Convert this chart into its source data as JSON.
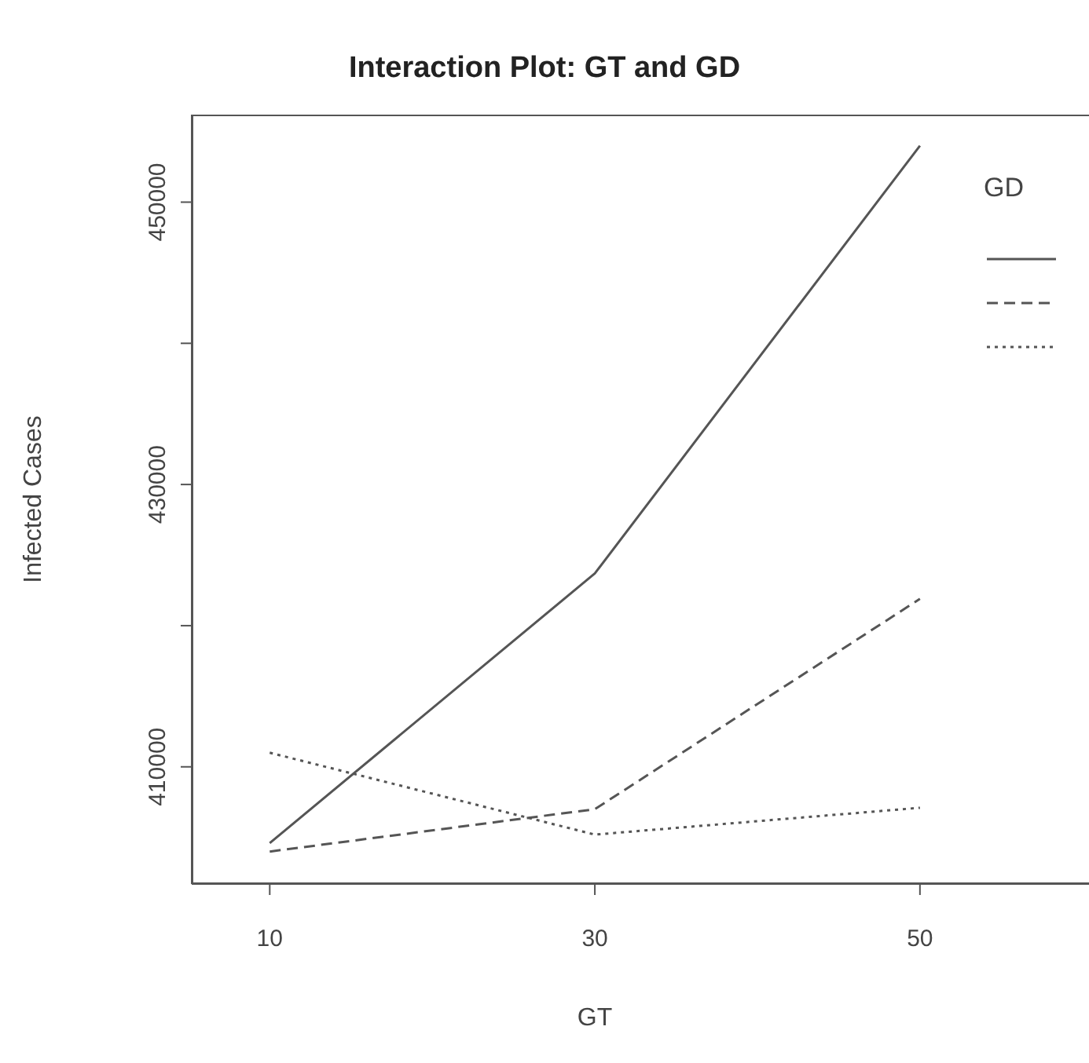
{
  "chart_data": {
    "type": "line",
    "title": "Interaction Plot: GT and GD",
    "xlabel": "GT",
    "ylabel": "Infected Cases",
    "legend_title": "GD",
    "x": [
      10,
      30,
      50
    ],
    "xlim": [
      5.2,
      60.4
    ],
    "xticks": [
      10,
      30,
      50
    ],
    "ylim": [
      401700,
      456200
    ],
    "yticks": [
      410000,
      {
        "value": 420000,
        "label": null
      },
      430000,
      {
        "value": 440000,
        "label": null
      },
      450000
    ],
    "grid": false,
    "marker": "none",
    "series": [
      {
        "color": "#555555",
        "line_style": "solid",
        "values": [
          404600,
          423700,
          454000
        ]
      },
      {
        "color": "#555555",
        "line_style": "dashed",
        "values": [
          404000,
          407000,
          421900
        ]
      },
      {
        "color": "#555555",
        "line_style": "dotted",
        "values": [
          411000,
          405200,
          407100
        ]
      }
    ]
  }
}
